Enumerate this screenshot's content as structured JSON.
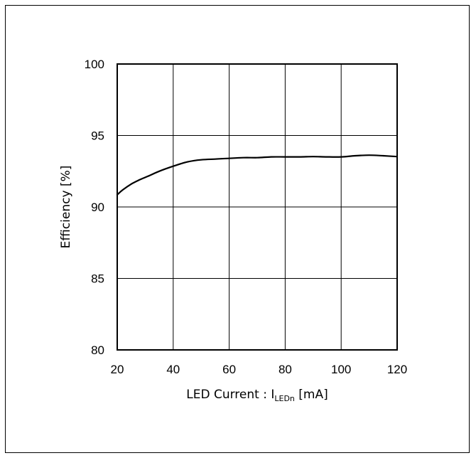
{
  "chart_data": {
    "type": "line",
    "title": "",
    "xlabel": {
      "main": "LED Current : I",
      "subscript": "LEDn",
      "unit": " [mA]"
    },
    "ylabel": "Efficiency [%]",
    "xlim": [
      20,
      120
    ],
    "ylim": [
      80,
      100
    ],
    "x_ticks": [
      "20",
      "40",
      "60",
      "80",
      "100",
      "120"
    ],
    "y_ticks": [
      "80",
      "85",
      "90",
      "95",
      "100"
    ],
    "grid": true,
    "colors": {
      "line": "#000000",
      "grid": "#000000",
      "frame": "#000000"
    },
    "series": [
      {
        "x": [
          20,
          22,
          25,
          28,
          31,
          35,
          40,
          45,
          50,
          55,
          60,
          65,
          70,
          75,
          80,
          85,
          90,
          95,
          100,
          105,
          110,
          115,
          120
        ],
        "y": [
          90.85,
          91.2,
          91.6,
          91.9,
          92.15,
          92.5,
          92.85,
          93.15,
          93.3,
          93.35,
          93.4,
          93.45,
          93.45,
          93.5,
          93.5,
          93.5,
          93.52,
          93.5,
          93.5,
          93.58,
          93.62,
          93.58,
          93.52
        ]
      }
    ]
  }
}
